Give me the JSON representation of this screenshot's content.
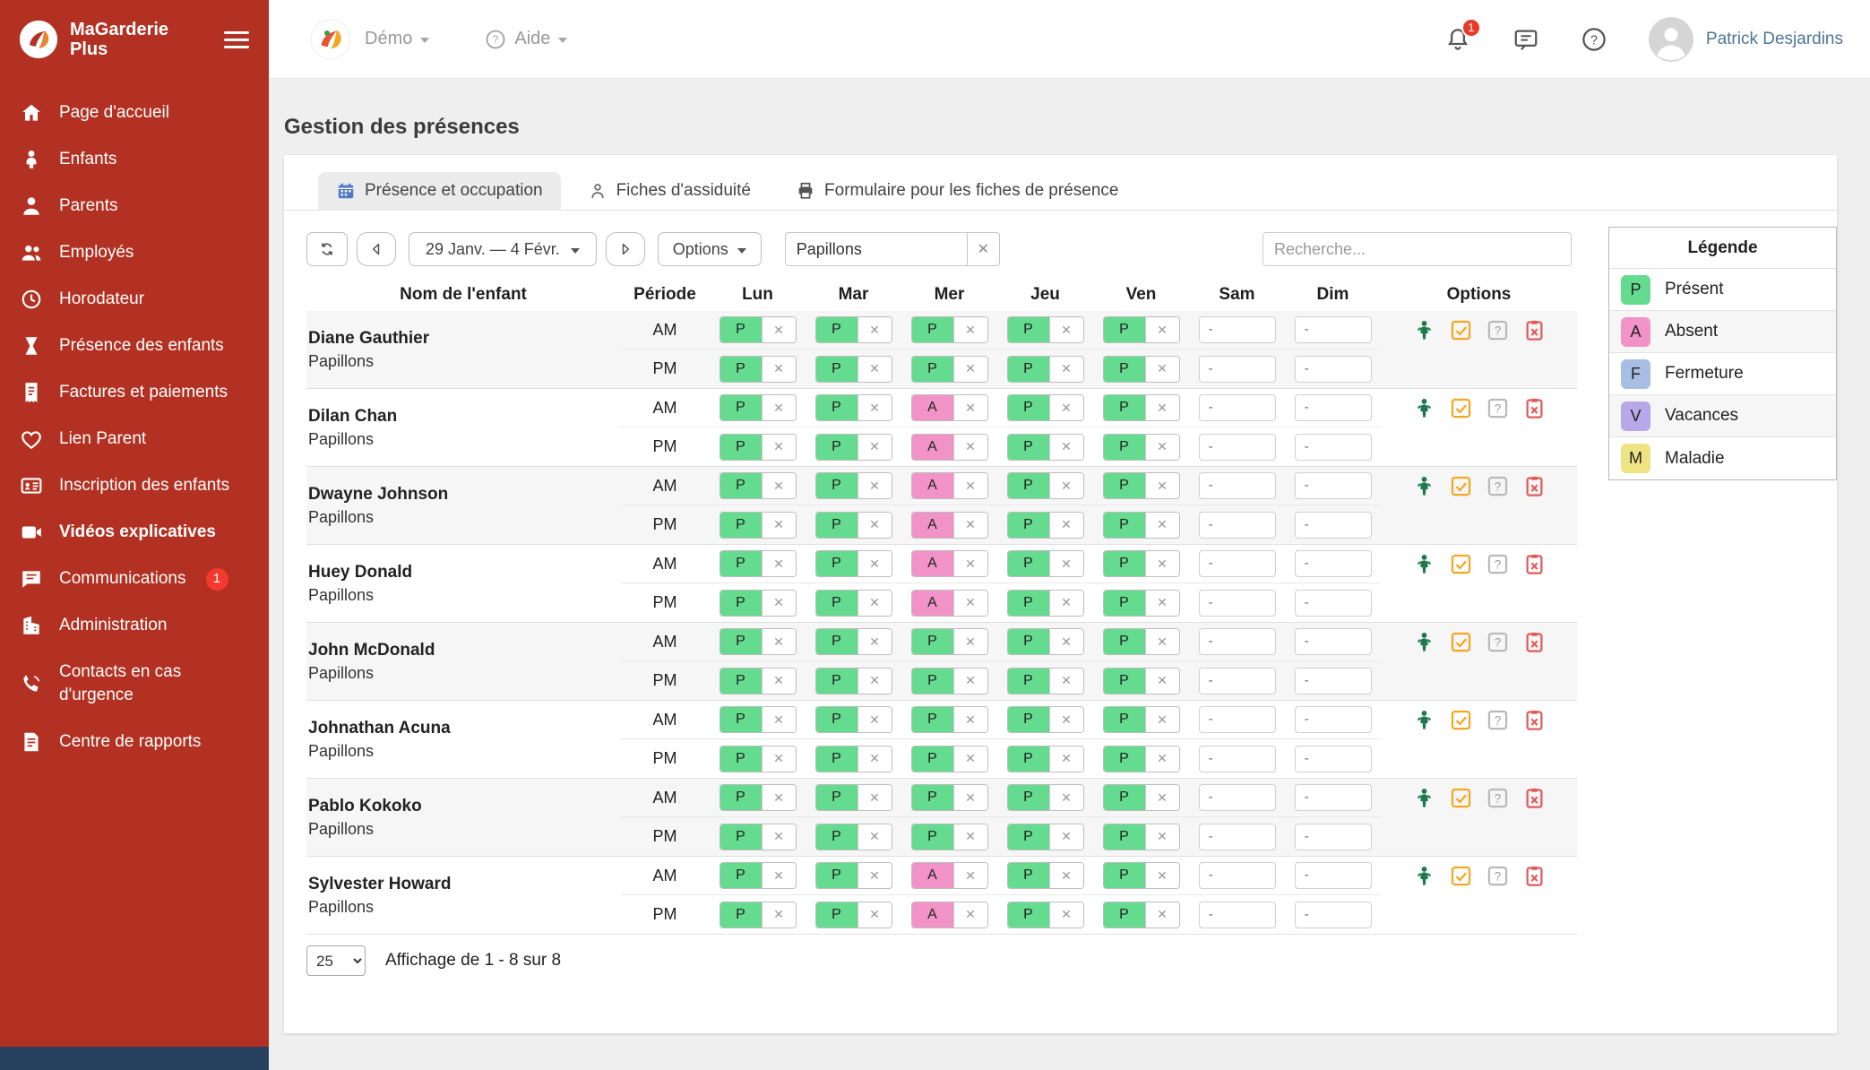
{
  "app": {
    "logo_line1": "MaGarderie",
    "logo_line2": "Plus"
  },
  "icons": {
    "clear": "✕",
    "dash": "-"
  },
  "topbar": {
    "org_label": "Démo",
    "help_label": "Aide",
    "notification_badge": "1",
    "user_name": "Patrick Desjardins"
  },
  "sidebar": {
    "items": [
      {
        "label": "Page d'accueil",
        "icon": "home"
      },
      {
        "label": "Enfants",
        "icon": "child"
      },
      {
        "label": "Parents",
        "icon": "person"
      },
      {
        "label": "Employés",
        "icon": "people"
      },
      {
        "label": "Horodateur",
        "icon": "clock"
      },
      {
        "label": "Présence des enfants",
        "icon": "hourglass"
      },
      {
        "label": "Factures et paiements",
        "icon": "invoice"
      },
      {
        "label": "Lien Parent",
        "icon": "heart"
      },
      {
        "label": "Inscription des enfants",
        "icon": "idcard"
      },
      {
        "label": "Vidéos explicatives",
        "icon": "video",
        "active": true
      },
      {
        "label": "Communications",
        "icon": "chat",
        "badge": "1"
      },
      {
        "label": "Administration",
        "icon": "building"
      },
      {
        "label": "Contacts en cas d'urgence",
        "icon": "phone"
      },
      {
        "label": "Centre de rapports",
        "icon": "report"
      }
    ]
  },
  "page": {
    "title": "Gestion des présences"
  },
  "tabs": [
    {
      "label": "Présence et occupation",
      "icon": "calendar",
      "active": true
    },
    {
      "label": "Fiches d'assiduité",
      "icon": "badge",
      "active": false
    },
    {
      "label": "Formulaire pour les fiches de présence",
      "icon": "printer",
      "active": false
    }
  ],
  "toolbar": {
    "date_range": "29 Janv. — 4 Févr.",
    "options_label": "Options",
    "group_filter": "Papillons",
    "search_placeholder": "Recherche..."
  },
  "table": {
    "headers": {
      "name": "Nom de l'enfant",
      "period": "Période",
      "days": [
        "Lun",
        "Mar",
        "Mer",
        "Jeu",
        "Ven",
        "Sam",
        "Dim"
      ],
      "options": "Options"
    },
    "period_labels": [
      "AM",
      "PM"
    ],
    "rows": [
      {
        "name": "Diane Gauthier",
        "group": "Papillons",
        "am": [
          "P",
          "P",
          "P",
          "P",
          "P",
          "-",
          "-"
        ],
        "pm": [
          "P",
          "P",
          "P",
          "P",
          "P",
          "-",
          "-"
        ]
      },
      {
        "name": "Dilan Chan",
        "group": "Papillons",
        "am": [
          "P",
          "P",
          "A",
          "P",
          "P",
          "-",
          "-"
        ],
        "pm": [
          "P",
          "P",
          "A",
          "P",
          "P",
          "-",
          "-"
        ]
      },
      {
        "name": "Dwayne Johnson",
        "group": "Papillons",
        "am": [
          "P",
          "P",
          "A",
          "P",
          "P",
          "-",
          "-"
        ],
        "pm": [
          "P",
          "P",
          "A",
          "P",
          "P",
          "-",
          "-"
        ]
      },
      {
        "name": "Huey Donald",
        "group": "Papillons",
        "am": [
          "P",
          "P",
          "A",
          "P",
          "P",
          "-",
          "-"
        ],
        "pm": [
          "P",
          "P",
          "A",
          "P",
          "P",
          "-",
          "-"
        ]
      },
      {
        "name": "John McDonald",
        "group": "Papillons",
        "am": [
          "P",
          "P",
          "P",
          "P",
          "P",
          "-",
          "-"
        ],
        "pm": [
          "P",
          "P",
          "P",
          "P",
          "P",
          "-",
          "-"
        ]
      },
      {
        "name": "Johnathan Acuna",
        "group": "Papillons",
        "am": [
          "P",
          "P",
          "P",
          "P",
          "P",
          "-",
          "-"
        ],
        "pm": [
          "P",
          "P",
          "P",
          "P",
          "P",
          "-",
          "-"
        ]
      },
      {
        "name": "Pablo Kokoko",
        "group": "Papillons",
        "am": [
          "P",
          "P",
          "P",
          "P",
          "P",
          "-",
          "-"
        ],
        "pm": [
          "P",
          "P",
          "P",
          "P",
          "P",
          "-",
          "-"
        ]
      },
      {
        "name": "Sylvester Howard",
        "group": "Papillons",
        "am": [
          "P",
          "P",
          "A",
          "P",
          "P",
          "-",
          "-"
        ],
        "pm": [
          "P",
          "P",
          "A",
          "P",
          "P",
          "-",
          "-"
        ]
      }
    ]
  },
  "status_colors": {
    "P": "#65DB90",
    "A": "#F193C6",
    "F": "#A9BEE4",
    "V": "#B7A8E8",
    "M": "#EFE483"
  },
  "legend": {
    "title": "Légende",
    "items": [
      {
        "code": "P",
        "label": "Présent"
      },
      {
        "code": "A",
        "label": "Absent"
      },
      {
        "code": "F",
        "label": "Fermeture"
      },
      {
        "code": "V",
        "label": "Vacances"
      },
      {
        "code": "M",
        "label": "Maladie"
      }
    ]
  },
  "pagination": {
    "page_size": "25",
    "info": "Affichage de 1 - 8 sur 8"
  }
}
